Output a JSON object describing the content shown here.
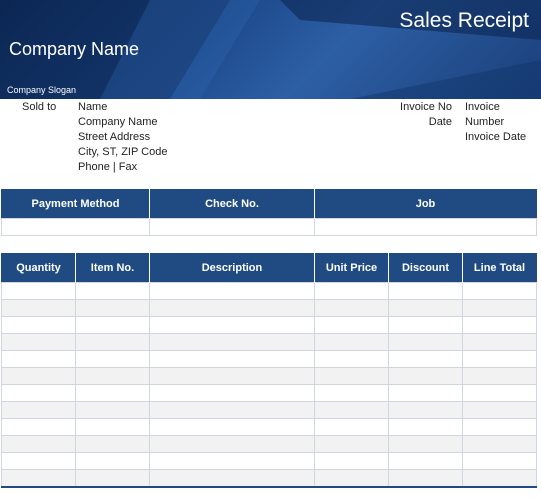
{
  "header": {
    "title": "Sales Receipt",
    "company_name": "Company Name",
    "slogan": "Company Slogan"
  },
  "sold_to": {
    "label": "Sold to",
    "lines": [
      "Name",
      "Company Name",
      "Street Address",
      "City, ST,  ZIP Code",
      "Phone | Fax"
    ]
  },
  "invoice": {
    "no_label": "Invoice No",
    "no_value": "Invoice Number",
    "date_label": "Date",
    "date_value": "Invoice Date"
  },
  "payment_table": {
    "headers": [
      "Payment Method",
      "Check No.",
      "Job"
    ]
  },
  "items_table": {
    "headers": [
      "Quantity",
      "Item No.",
      "Description",
      "Unit Price",
      "Discount",
      "Line Total"
    ],
    "empty_rows": 12
  },
  "colors": {
    "header_blue": "#1f4b82",
    "banner_dark": "#0d2a57"
  }
}
